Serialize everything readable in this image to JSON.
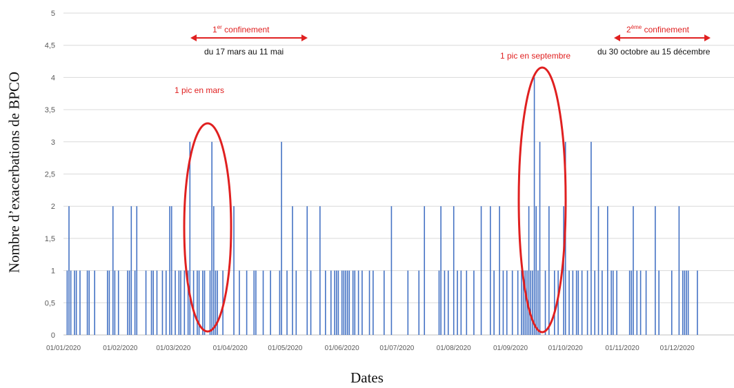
{
  "chart_data": {
    "type": "bar",
    "title": "",
    "xlabel": "Dates",
    "ylabel": "Nombre d’exacerbations de BPCO",
    "ylim": [
      0,
      5
    ],
    "y_ticks": [
      "0",
      "0,5",
      "1",
      "1,5",
      "2",
      "2,5",
      "3",
      "3,5",
      "4",
      "4,5",
      "5"
    ],
    "x_ticks": [
      "01/01/2020",
      "01/02/2020",
      "01/03/2020",
      "01/04/2020",
      "01/05/2020",
      "01/06/2020",
      "01/07/2020",
      "01/08/2020",
      "01/09/2020",
      "01/10/2020",
      "01/11/2020",
      "01/12/2020"
    ],
    "grid": "horizontal",
    "series": [
      {
        "color": "#4472c4",
        "points": [
          [
            "2020-01-03",
            1
          ],
          [
            "2020-01-04",
            2
          ],
          [
            "2020-01-05",
            1
          ],
          [
            "2020-01-07",
            1
          ],
          [
            "2020-01-08",
            1
          ],
          [
            "2020-01-10",
            1
          ],
          [
            "2020-01-14",
            1
          ],
          [
            "2020-01-15",
            1
          ],
          [
            "2020-01-18",
            1
          ],
          [
            "2020-01-25",
            1
          ],
          [
            "2020-01-26",
            1
          ],
          [
            "2020-01-28",
            2
          ],
          [
            "2020-01-29",
            1
          ],
          [
            "2020-01-31",
            1
          ],
          [
            "2020-02-05",
            1
          ],
          [
            "2020-02-06",
            1
          ],
          [
            "2020-02-07",
            2
          ],
          [
            "2020-02-09",
            1
          ],
          [
            "2020-02-10",
            2
          ],
          [
            "2020-02-15",
            1
          ],
          [
            "2020-02-18",
            1
          ],
          [
            "2020-02-19",
            1
          ],
          [
            "2020-02-21",
            1
          ],
          [
            "2020-02-24",
            1
          ],
          [
            "2020-02-26",
            1
          ],
          [
            "2020-02-28",
            2
          ],
          [
            "2020-02-29",
            2
          ],
          [
            "2020-03-02",
            1
          ],
          [
            "2020-03-04",
            1
          ],
          [
            "2020-03-05",
            1
          ],
          [
            "2020-03-07",
            1
          ],
          [
            "2020-03-09",
            1
          ],
          [
            "2020-03-10",
            3
          ],
          [
            "2020-03-12",
            1
          ],
          [
            "2020-03-14",
            1
          ],
          [
            "2020-03-15",
            1
          ],
          [
            "2020-03-17",
            1
          ],
          [
            "2020-03-18",
            1
          ],
          [
            "2020-03-21",
            1
          ],
          [
            "2020-03-22",
            3
          ],
          [
            "2020-03-23",
            2
          ],
          [
            "2020-03-24",
            1
          ],
          [
            "2020-03-25",
            1
          ],
          [
            "2020-03-28",
            1
          ],
          [
            "2020-04-03",
            2
          ],
          [
            "2020-04-06",
            1
          ],
          [
            "2020-04-10",
            1
          ],
          [
            "2020-04-14",
            1
          ],
          [
            "2020-04-15",
            1
          ],
          [
            "2020-04-19",
            1
          ],
          [
            "2020-04-23",
            1
          ],
          [
            "2020-04-28",
            1
          ],
          [
            "2020-04-29",
            3
          ],
          [
            "2020-05-02",
            1
          ],
          [
            "2020-05-05",
            2
          ],
          [
            "2020-05-07",
            1
          ],
          [
            "2020-05-13",
            2
          ],
          [
            "2020-05-15",
            1
          ],
          [
            "2020-05-20",
            2
          ],
          [
            "2020-05-23",
            1
          ],
          [
            "2020-05-26",
            1
          ],
          [
            "2020-05-28",
            1
          ],
          [
            "2020-05-29",
            1
          ],
          [
            "2020-05-30",
            1
          ],
          [
            "2020-06-01",
            1
          ],
          [
            "2020-06-02",
            1
          ],
          [
            "2020-06-03",
            1
          ],
          [
            "2020-06-04",
            1
          ],
          [
            "2020-06-05",
            1
          ],
          [
            "2020-06-07",
            1
          ],
          [
            "2020-06-08",
            1
          ],
          [
            "2020-06-10",
            1
          ],
          [
            "2020-06-12",
            1
          ],
          [
            "2020-06-16",
            1
          ],
          [
            "2020-06-18",
            1
          ],
          [
            "2020-06-24",
            1
          ],
          [
            "2020-06-28",
            2
          ],
          [
            "2020-07-07",
            1
          ],
          [
            "2020-07-13",
            1
          ],
          [
            "2020-07-16",
            2
          ],
          [
            "2020-07-24",
            1
          ],
          [
            "2020-07-25",
            2
          ],
          [
            "2020-07-27",
            1
          ],
          [
            "2020-07-29",
            1
          ],
          [
            "2020-08-01",
            2
          ],
          [
            "2020-08-03",
            1
          ],
          [
            "2020-08-05",
            1
          ],
          [
            "2020-08-08",
            1
          ],
          [
            "2020-08-12",
            1
          ],
          [
            "2020-08-16",
            2
          ],
          [
            "2020-08-21",
            2
          ],
          [
            "2020-08-23",
            1
          ],
          [
            "2020-08-26",
            2
          ],
          [
            "2020-08-28",
            1
          ],
          [
            "2020-08-30",
            1
          ],
          [
            "2020-09-02",
            1
          ],
          [
            "2020-09-05",
            1
          ],
          [
            "2020-09-07",
            1
          ],
          [
            "2020-09-08",
            1
          ],
          [
            "2020-09-09",
            1
          ],
          [
            "2020-09-10",
            1
          ],
          [
            "2020-09-11",
            2
          ],
          [
            "2020-09-12",
            1
          ],
          [
            "2020-09-13",
            1
          ],
          [
            "2020-09-14",
            4
          ],
          [
            "2020-09-15",
            2
          ],
          [
            "2020-09-16",
            1
          ],
          [
            "2020-09-17",
            3
          ],
          [
            "2020-09-20",
            1
          ],
          [
            "2020-09-22",
            2
          ],
          [
            "2020-09-25",
            1
          ],
          [
            "2020-09-27",
            1
          ],
          [
            "2020-09-30",
            2
          ],
          [
            "2020-10-01",
            3
          ],
          [
            "2020-10-03",
            1
          ],
          [
            "2020-10-05",
            1
          ],
          [
            "2020-10-07",
            1
          ],
          [
            "2020-10-08",
            1
          ],
          [
            "2020-10-10",
            1
          ],
          [
            "2020-10-13",
            1
          ],
          [
            "2020-10-15",
            3
          ],
          [
            "2020-10-17",
            1
          ],
          [
            "2020-10-19",
            2
          ],
          [
            "2020-10-21",
            1
          ],
          [
            "2020-10-24",
            2
          ],
          [
            "2020-10-26",
            1
          ],
          [
            "2020-10-27",
            1
          ],
          [
            "2020-10-29",
            1
          ],
          [
            "2020-11-05",
            1
          ],
          [
            "2020-11-06",
            1
          ],
          [
            "2020-11-07",
            2
          ],
          [
            "2020-11-09",
            1
          ],
          [
            "2020-11-11",
            1
          ],
          [
            "2020-11-14",
            1
          ],
          [
            "2020-11-19",
            2
          ],
          [
            "2020-11-21",
            1
          ],
          [
            "2020-11-28",
            1
          ],
          [
            "2020-12-02",
            2
          ],
          [
            "2020-12-04",
            1
          ],
          [
            "2020-12-05",
            1
          ],
          [
            "2020-12-06",
            1
          ],
          [
            "2020-12-07",
            1
          ],
          [
            "2020-12-12",
            1
          ]
        ]
      }
    ],
    "annotations": {
      "confinement1_num": "1",
      "confinement1_sup": "er",
      "confinement1_word": " confinement",
      "confinement1_range": "du 17 mars au 11 mai",
      "confinement2_num": "2",
      "confinement2_sup": "ème",
      "confinement2_word": " confinement",
      "confinement2_range": "du 30 octobre au 15 décembre",
      "peak_march": "1 pic en mars",
      "peak_september": "1 pic en septembre"
    },
    "colors": {
      "bars": "#4472c4",
      "annotation": "#e02020",
      "grid": "#d9d9d9"
    }
  }
}
